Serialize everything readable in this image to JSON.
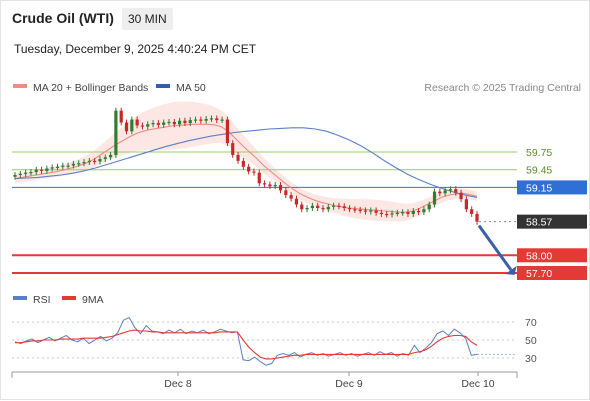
{
  "header": {
    "title": "Crude Oil (WTI)",
    "interval": "30 MIN",
    "datetime": "Tuesday, December 9, 2025 4:40:24 PM CET"
  },
  "legend": {
    "bollinger": "MA 20 + Bollinger Bands",
    "ma50": "MA 50",
    "credit": "Research © 2025 Trading Central",
    "rsi": "RSI",
    "rsi_ma": "9MA"
  },
  "colors": {
    "candle_up": "#2e7d32",
    "candle_down": "#c62828",
    "ma20": "#f28b82",
    "band_fill": "#fde3e1",
    "ma50": "#5b7fc7",
    "resistance": "#9ccc65",
    "pivot": "#2f6fd6",
    "support": "#e53935",
    "current": "#333333",
    "arrow": "#3a5fa8"
  },
  "chart_data": [
    {
      "type": "candlestick",
      "x_ticks": [
        "Dec 8",
        "Dec 9",
        "Dec 10"
      ],
      "levels": [
        {
          "value": 59.75,
          "label": "59.75",
          "kind": "resistance"
        },
        {
          "value": 59.45,
          "label": "59.45",
          "kind": "resistance"
        },
        {
          "value": 59.15,
          "label": "59.15",
          "kind": "pivot"
        },
        {
          "value": 58.57,
          "label": "58.57",
          "kind": "current"
        },
        {
          "value": 58.0,
          "label": "58.00",
          "kind": "support"
        },
        {
          "value": 57.7,
          "label": "57.70",
          "kind": "support"
        }
      ],
      "closes": [
        59.36,
        59.38,
        59.4,
        59.41,
        59.45,
        59.43,
        59.47,
        59.49,
        59.5,
        59.52,
        59.52,
        59.55,
        59.56,
        59.58,
        59.6,
        59.59,
        59.63,
        59.66,
        59.7,
        60.45,
        60.25,
        60.1,
        60.3,
        60.2,
        60.18,
        60.22,
        60.24,
        60.21,
        60.25,
        60.26,
        60.22,
        60.28,
        60.24,
        60.29,
        60.3,
        60.28,
        60.31,
        60.32,
        60.29,
        60.3,
        59.9,
        59.7,
        59.6,
        59.5,
        59.42,
        59.4,
        59.22,
        59.2,
        59.17,
        59.19,
        59.1,
        59.02,
        58.96,
        58.86,
        58.78,
        58.8,
        58.84,
        58.8,
        58.78,
        58.82,
        58.84,
        58.83,
        58.8,
        58.78,
        58.77,
        58.76,
        58.74,
        58.76,
        58.72,
        58.7,
        58.69,
        58.71,
        58.72,
        58.73,
        58.7,
        58.75,
        58.73,
        58.78,
        58.86,
        59.08,
        59.05,
        59.1,
        59.12,
        59.06,
        58.95,
        58.78,
        58.7,
        58.57
      ],
      "opens": [
        59.33,
        59.36,
        59.37,
        59.4,
        59.41,
        59.45,
        59.43,
        59.47,
        59.49,
        59.5,
        59.52,
        59.52,
        59.55,
        59.56,
        59.58,
        59.6,
        59.59,
        59.63,
        59.66,
        59.7,
        60.45,
        60.25,
        60.1,
        60.3,
        60.2,
        60.18,
        60.22,
        60.24,
        60.21,
        60.25,
        60.26,
        60.22,
        60.28,
        60.24,
        60.29,
        60.3,
        60.28,
        60.31,
        60.32,
        60.29,
        60.3,
        59.9,
        59.7,
        59.6,
        59.5,
        59.42,
        59.4,
        59.22,
        59.2,
        59.17,
        59.19,
        59.1,
        59.02,
        58.96,
        58.86,
        58.78,
        58.8,
        58.84,
        58.8,
        58.78,
        58.82,
        58.84,
        58.83,
        58.8,
        58.78,
        58.77,
        58.76,
        58.74,
        58.76,
        58.72,
        58.7,
        58.69,
        58.71,
        58.72,
        58.73,
        58.7,
        58.75,
        58.73,
        58.78,
        58.86,
        59.08,
        59.05,
        59.1,
        59.12,
        59.06,
        58.95,
        58.78,
        58.7
      ],
      "ma20": [
        59.3,
        59.32,
        59.34,
        59.36,
        59.38,
        59.4,
        59.42,
        59.45,
        59.48,
        59.52,
        59.56,
        59.62,
        59.7,
        59.78,
        59.86,
        59.93,
        60.0,
        60.06,
        60.1,
        60.13,
        60.15,
        60.17,
        60.19,
        60.2,
        60.21,
        60.22,
        60.22,
        60.22,
        60.21,
        60.18,
        60.1,
        59.98,
        59.86,
        59.75,
        59.64,
        59.52,
        59.42,
        59.32,
        59.22,
        59.13,
        59.05,
        58.99,
        58.94,
        58.9,
        58.87,
        58.84,
        58.82,
        58.8,
        58.79,
        58.78,
        58.77,
        58.76,
        58.75,
        58.74,
        58.73,
        58.73,
        58.75,
        58.8,
        58.86,
        58.92,
        58.98,
        59.02,
        59.04,
        59.05,
        59.03,
        59.0
      ],
      "ma50": [
        59.3,
        59.31,
        59.32,
        59.34,
        59.36,
        59.39,
        59.43,
        59.48,
        59.54,
        59.6,
        59.66,
        59.72,
        59.78,
        59.84,
        59.89,
        59.94,
        59.98,
        60.02,
        60.05,
        60.08,
        60.1,
        60.12,
        60.14,
        60.15,
        60.16,
        60.16,
        60.14,
        60.1,
        60.03,
        59.95,
        59.85,
        59.73,
        59.6,
        59.48,
        59.37,
        59.28,
        59.2,
        59.13,
        59.07,
        59.02,
        58.98
      ],
      "direction": "down",
      "target": 57.7
    },
    {
      "type": "line",
      "name": "RSI",
      "y_ticks": [
        70,
        50,
        30
      ],
      "ylim": [
        20,
        80
      ],
      "rsi": [
        48,
        46,
        49,
        51,
        47,
        50,
        53,
        49,
        52,
        55,
        50,
        48,
        52,
        46,
        50,
        54,
        49,
        52,
        58,
        72,
        75,
        64,
        57,
        66,
        60,
        59,
        57,
        61,
        58,
        62,
        57,
        60,
        58,
        61,
        57,
        59,
        62,
        60,
        58,
        59,
        28,
        27,
        31,
        26,
        22,
        24,
        33,
        35,
        33,
        36,
        31,
        34,
        36,
        33,
        35,
        32,
        34,
        36,
        33,
        35,
        32,
        34,
        36,
        33,
        37,
        34,
        36,
        32,
        35,
        33,
        44,
        36,
        41,
        47,
        57,
        60,
        55,
        62,
        58,
        52,
        33,
        34
      ],
      "rsi_ma": [
        47,
        47,
        48,
        49,
        49,
        50,
        50,
        50,
        51,
        51,
        51,
        51,
        52,
        52,
        52,
        52,
        53,
        54,
        56,
        58,
        60,
        61,
        60,
        60,
        59,
        59,
        58,
        58,
        58,
        58,
        58,
        58,
        58,
        58,
        58,
        58,
        59,
        59,
        59,
        59,
        50,
        42,
        36,
        31,
        29,
        29,
        30,
        31,
        32,
        33,
        33,
        34,
        34,
        34,
        34,
        34,
        34,
        34,
        34,
        34,
        34,
        34,
        34,
        34,
        34,
        34,
        34,
        34,
        34,
        34,
        36,
        37,
        39,
        43,
        48,
        52,
        54,
        55,
        55,
        54,
        48,
        44
      ]
    }
  ]
}
